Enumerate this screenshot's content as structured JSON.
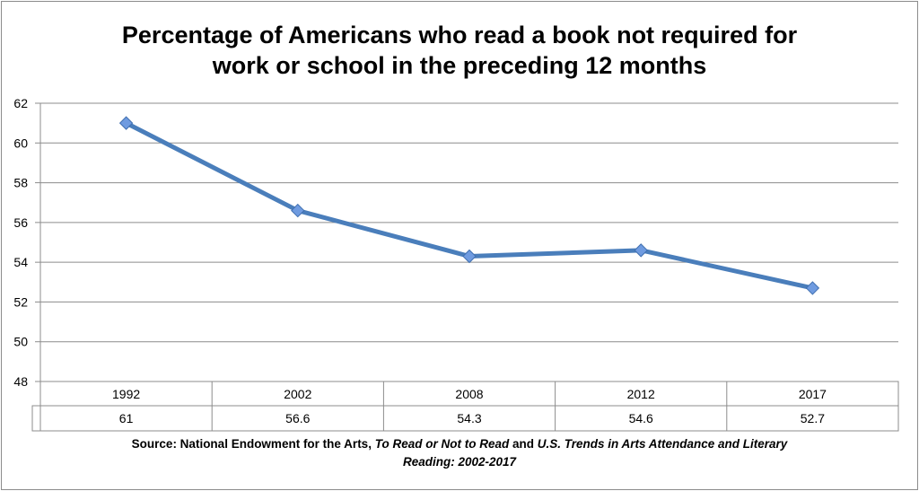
{
  "chart_data": {
    "type": "line",
    "title_lines": [
      "Percentage of Americans who read a book not required for",
      "work or school in the preceding 12 months"
    ],
    "categories": [
      "1992",
      "2002",
      "2008",
      "2012",
      "2017"
    ],
    "values": [
      61,
      56.6,
      54.3,
      54.6,
      52.7
    ],
    "value_labels": [
      "61",
      "56.6",
      "54.3",
      "54.6",
      "52.7"
    ],
    "ylim": [
      48,
      62
    ],
    "yticks": [
      "48",
      "50",
      "52",
      "54",
      "56",
      "58",
      "60",
      "62"
    ],
    "grid": true,
    "data_table": true,
    "line_color": "#4a7ebb",
    "marker": "diamond",
    "marker_color": "#6f9be0"
  },
  "source": {
    "prefix": "Source: National Endowment for the Arts, ",
    "title1": "To Read or Not to Read",
    "mid": " and ",
    "title2_line1": "U.S. Trends in Arts Attendance and Literary",
    "title2_line2": "Reading: 2002-2017"
  }
}
